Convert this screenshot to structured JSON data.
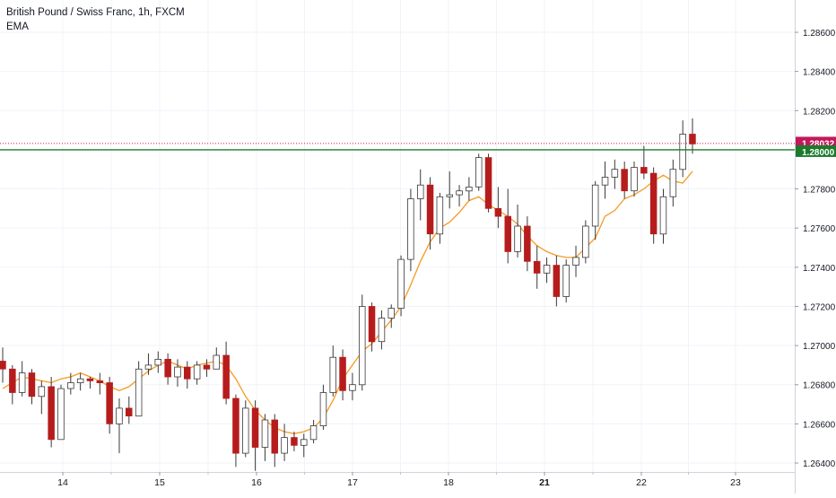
{
  "header": {
    "symbol_title": "British Pound / Swiss Franc, 1h, FXCM",
    "indicator_label": "EMA"
  },
  "colors": {
    "bull": "#ffffff",
    "bear": "#b71c1c",
    "wick": "#3a3a3a",
    "ema": "#f59a23",
    "level_line": "#1b7a2b",
    "price_line": "#c2185b",
    "axis_text": "#131722",
    "grid": "#f0f3fa"
  },
  "chart_data": {
    "type": "candlestick",
    "title": "British Pound / Swiss Franc, 1h, FXCM",
    "indicator": "EMA",
    "x_ticks": [
      "14",
      "15",
      "16",
      "17",
      "18",
      "21",
      "22",
      "23"
    ],
    "y_ticks": [
      "1.28600",
      "1.28400",
      "1.28200",
      "1.27800",
      "1.27600",
      "1.27400",
      "1.27200",
      "1.27000",
      "1.26800",
      "1.26600",
      "1.26400"
    ],
    "ylim": [
      1.2634,
      1.2893
    ],
    "horizontal_level": {
      "value": 1.28,
      "label": "1.28000"
    },
    "last_price": {
      "value": 1.28032,
      "label": "1.28032"
    },
    "ema": [
      1.2678,
      1.2681,
      1.2684,
      1.2683,
      1.2682,
      1.2681,
      1.2683,
      1.2684,
      1.2686,
      1.2684,
      1.2682,
      1.2679,
      1.2677,
      1.2679,
      1.2683,
      1.2687,
      1.269,
      1.2692,
      1.269,
      1.2688,
      1.269,
      1.2691,
      1.2692,
      1.269,
      1.2683,
      1.2674,
      1.2667,
      1.2662,
      1.2658,
      1.2656,
      1.2655,
      1.2656,
      1.2658,
      1.2663,
      1.2672,
      1.2683,
      1.269,
      1.2697,
      1.2701,
      1.2707,
      1.2713,
      1.272,
      1.2731,
      1.2743,
      1.2753,
      1.276,
      1.2763,
      1.2768,
      1.2774,
      1.2776,
      1.2772,
      1.2769,
      1.2766,
      1.2762,
      1.2756,
      1.2751,
      1.2748,
      1.2746,
      1.2745,
      1.2745,
      1.275,
      1.2755,
      1.2766,
      1.2769,
      1.2775,
      1.2777,
      1.278,
      1.2784,
      1.2787,
      1.2784,
      1.2783,
      1.2789
    ],
    "candles": [
      [
        1.2692,
        1.2699,
        1.2681,
        1.2688
      ],
      [
        1.2688,
        1.269,
        1.267,
        1.2676
      ],
      [
        1.2676,
        1.2692,
        1.2674,
        1.2686
      ],
      [
        1.2686,
        1.2688,
        1.267,
        1.2674
      ],
      [
        1.2674,
        1.2682,
        1.2665,
        1.2679
      ],
      [
        1.2679,
        1.2684,
        1.2648,
        1.2652
      ],
      [
        1.2652,
        1.268,
        1.2652,
        1.2678
      ],
      [
        1.2678,
        1.2686,
        1.2675,
        1.2681
      ],
      [
        1.2681,
        1.2686,
        1.2677,
        1.2683
      ],
      [
        1.2683,
        1.2684,
        1.2678,
        1.2682
      ],
      [
        1.2682,
        1.2686,
        1.2675,
        1.2681
      ],
      [
        1.2681,
        1.2684,
        1.2655,
        1.266
      ],
      [
        1.266,
        1.2673,
        1.2645,
        1.2668
      ],
      [
        1.2668,
        1.2674,
        1.266,
        1.2664
      ],
      [
        1.2664,
        1.2692,
        1.2664,
        1.2688
      ],
      [
        1.2688,
        1.2696,
        1.2685,
        1.269
      ],
      [
        1.269,
        1.2697,
        1.2686,
        1.2693
      ],
      [
        1.2693,
        1.2696,
        1.268,
        1.2684
      ],
      [
        1.2684,
        1.2693,
        1.2679,
        1.2689
      ],
      [
        1.2689,
        1.2692,
        1.2678,
        1.2683
      ],
      [
        1.2683,
        1.2692,
        1.268,
        1.269
      ],
      [
        1.269,
        1.2693,
        1.2684,
        1.2688
      ],
      [
        1.2688,
        1.2699,
        1.2688,
        1.2695
      ],
      [
        1.2695,
        1.2702,
        1.267,
        1.2673
      ],
      [
        1.2673,
        1.2675,
        1.2638,
        1.2645
      ],
      [
        1.2645,
        1.2672,
        1.2643,
        1.2668
      ],
      [
        1.2668,
        1.2672,
        1.2636,
        1.2648
      ],
      [
        1.2648,
        1.2665,
        1.2641,
        1.2662
      ],
      [
        1.2662,
        1.2665,
        1.2638,
        1.2645
      ],
      [
        1.2645,
        1.266,
        1.2641,
        1.2653
      ],
      [
        1.2653,
        1.2656,
        1.2646,
        1.2649
      ],
      [
        1.2649,
        1.2655,
        1.2643,
        1.2652
      ],
      [
        1.2652,
        1.2662,
        1.265,
        1.2659
      ],
      [
        1.2659,
        1.268,
        1.2657,
        1.2676
      ],
      [
        1.2676,
        1.27,
        1.2674,
        1.2694
      ],
      [
        1.2694,
        1.2698,
        1.2672,
        1.2677
      ],
      [
        1.2677,
        1.2686,
        1.2672,
        1.268
      ],
      [
        1.268,
        1.2726,
        1.2677,
        1.272
      ],
      [
        1.272,
        1.2722,
        1.2697,
        1.2702
      ],
      [
        1.2702,
        1.2718,
        1.2698,
        1.2714
      ],
      [
        1.2714,
        1.2721,
        1.2709,
        1.2719
      ],
      [
        1.2719,
        1.2746,
        1.2715,
        1.2744
      ],
      [
        1.2744,
        1.278,
        1.2738,
        1.2775
      ],
      [
        1.2775,
        1.279,
        1.2764,
        1.2782
      ],
      [
        1.2782,
        1.2786,
        1.2749,
        1.2757
      ],
      [
        1.2757,
        1.2778,
        1.2752,
        1.2776
      ],
      [
        1.2776,
        1.2789,
        1.277,
        1.2777
      ],
      [
        1.2777,
        1.2782,
        1.2771,
        1.2779
      ],
      [
        1.2779,
        1.2786,
        1.2774,
        1.2781
      ],
      [
        1.2781,
        1.2798,
        1.2779,
        1.2796
      ],
      [
        1.2796,
        1.2798,
        1.2768,
        1.277
      ],
      [
        1.277,
        1.2781,
        1.276,
        1.2766
      ],
      [
        1.2766,
        1.278,
        1.2742,
        1.2748
      ],
      [
        1.2748,
        1.2772,
        1.2745,
        1.2761
      ],
      [
        1.2761,
        1.2766,
        1.2738,
        1.2743
      ],
      [
        1.2743,
        1.2751,
        1.2729,
        1.2737
      ],
      [
        1.2737,
        1.2745,
        1.2732,
        1.2741
      ],
      [
        1.2741,
        1.2746,
        1.272,
        1.2725
      ],
      [
        1.2725,
        1.2744,
        1.2722,
        1.2741
      ],
      [
        1.2741,
        1.2751,
        1.2735,
        1.2745
      ],
      [
        1.2745,
        1.2764,
        1.2742,
        1.2761
      ],
      [
        1.2761,
        1.2784,
        1.2754,
        1.2782
      ],
      [
        1.2782,
        1.2794,
        1.2775,
        1.2786
      ],
      [
        1.2786,
        1.2795,
        1.278,
        1.279
      ],
      [
        1.279,
        1.2794,
        1.2775,
        1.2779
      ],
      [
        1.2779,
        1.2794,
        1.2776,
        1.2791
      ],
      [
        1.2791,
        1.2802,
        1.2785,
        1.2788
      ],
      [
        1.2788,
        1.2791,
        1.2752,
        1.2757
      ],
      [
        1.2757,
        1.278,
        1.2752,
        1.2776
      ],
      [
        1.2776,
        1.2795,
        1.2771,
        1.279
      ],
      [
        1.279,
        1.2815,
        1.2786,
        1.2808
      ],
      [
        1.2808,
        1.2816,
        1.2798,
        1.2803
      ]
    ]
  }
}
